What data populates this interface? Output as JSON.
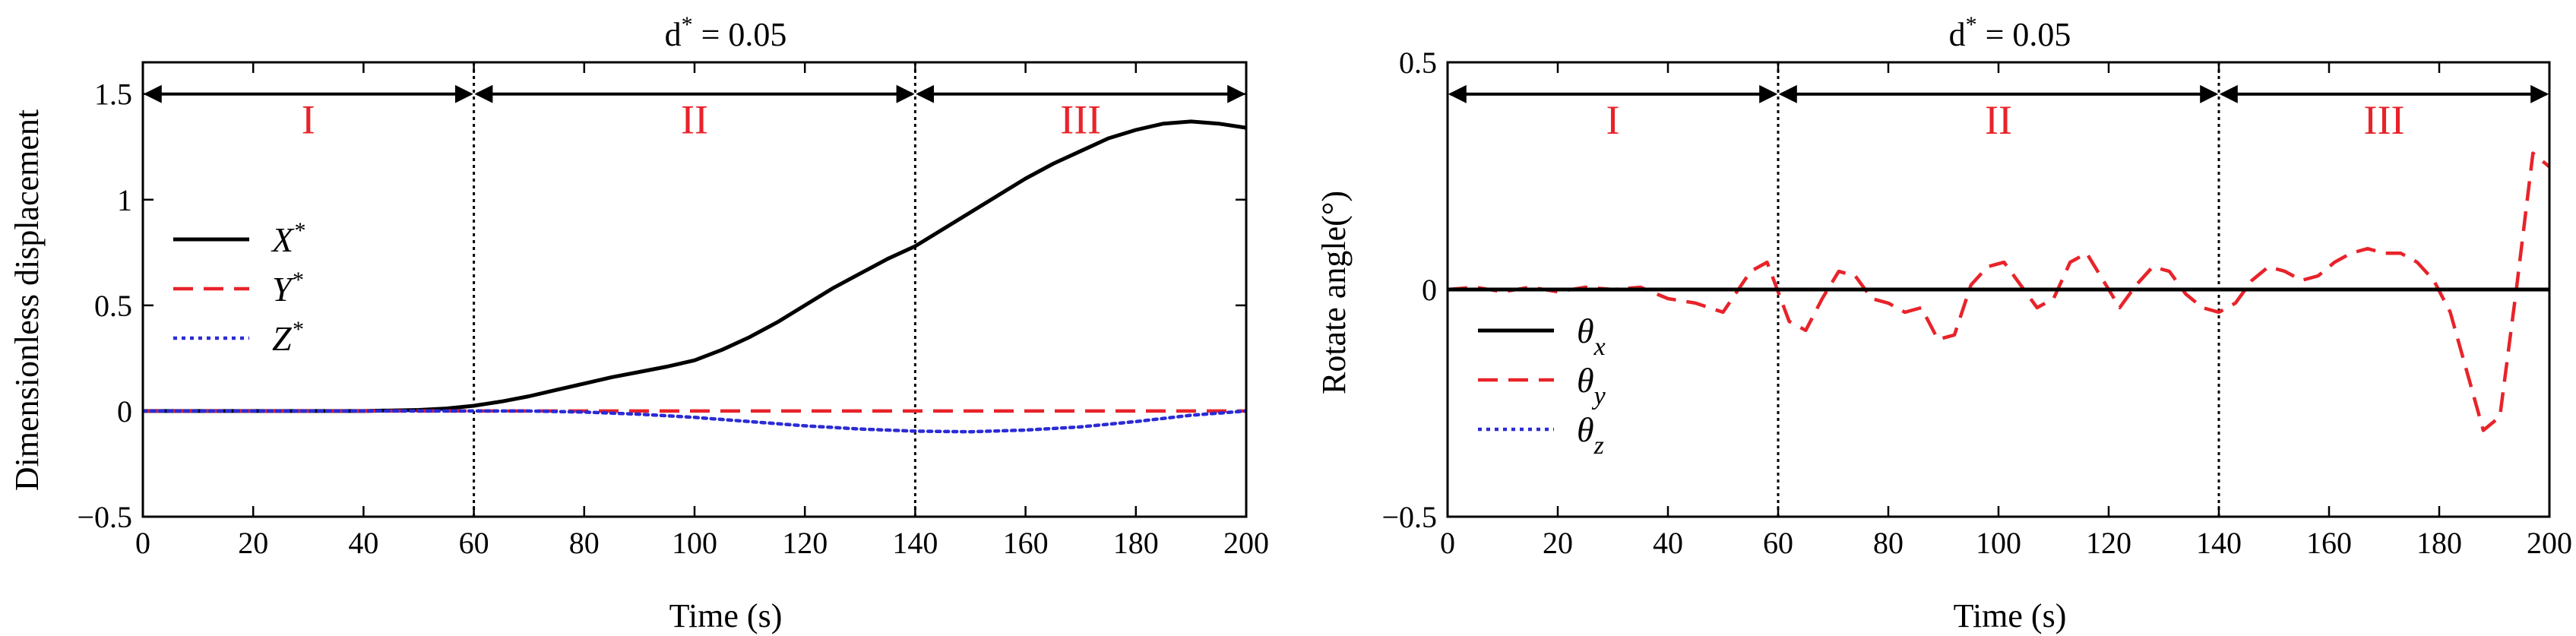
{
  "chart_data": [
    {
      "type": "line",
      "title_base": "d",
      "title_sup": "*",
      "title_rest": " = 0.05",
      "xlabel": "Time (s)",
      "ylabel": "Dimensionless displacement",
      "xlim": [
        0,
        200
      ],
      "ylim": [
        -0.5,
        1.65
      ],
      "xticks": [
        0,
        20,
        40,
        60,
        80,
        100,
        120,
        140,
        160,
        180,
        200
      ],
      "xtick_labels": [
        "0",
        "20",
        "40",
        "60",
        "80",
        "100",
        "120",
        "140",
        "160",
        "180",
        "200"
      ],
      "yticks": [
        -0.5,
        0,
        0.5,
        1,
        1.5
      ],
      "ytick_labels": [
        "−0.5",
        "0",
        "0.5",
        "1",
        "1.5"
      ],
      "phase_boundaries": [
        60,
        140
      ],
      "arrow_y": 1.5,
      "regions": [
        {
          "label": "I",
          "x": 30
        },
        {
          "label": "II",
          "x": 100
        },
        {
          "label": "III",
          "x": 170
        }
      ],
      "legend_position": "left-middle",
      "series": [
        {
          "name": "X*",
          "legend_main": "X",
          "legend_sub": "",
          "legend_sup": "*",
          "color": "#000000",
          "dash": "solid",
          "x": [
            0,
            10,
            20,
            30,
            40,
            50,
            55,
            60,
            65,
            70,
            75,
            80,
            85,
            90,
            95,
            100,
            105,
            110,
            115,
            120,
            125,
            130,
            135,
            140,
            145,
            150,
            155,
            160,
            165,
            170,
            175,
            180,
            185,
            190,
            195,
            200
          ],
          "y": [
            0,
            0,
            0,
            0,
            0,
            0.005,
            0.012,
            0.025,
            0.045,
            0.07,
            0.1,
            0.13,
            0.16,
            0.185,
            0.21,
            0.24,
            0.29,
            0.35,
            0.42,
            0.5,
            0.58,
            0.65,
            0.72,
            0.78,
            0.86,
            0.94,
            1.02,
            1.1,
            1.17,
            1.23,
            1.29,
            1.33,
            1.36,
            1.37,
            1.36,
            1.34
          ]
        },
        {
          "name": "Y*",
          "legend_main": "Y",
          "legend_sub": "",
          "legend_sup": "*",
          "color": "#e8232a",
          "dash": "dashed",
          "x": [
            0,
            20,
            40,
            60,
            80,
            100,
            120,
            140,
            160,
            180,
            200
          ],
          "y": [
            0,
            0,
            0,
            0,
            0,
            0,
            0,
            0,
            0,
            0,
            0
          ]
        },
        {
          "name": "Z*",
          "legend_main": "Z",
          "legend_sub": "",
          "legend_sup": "*",
          "color": "#2b2bd6",
          "dash": "dotted",
          "x": [
            0,
            20,
            40,
            60,
            70,
            80,
            90,
            100,
            110,
            120,
            130,
            140,
            150,
            160,
            170,
            180,
            190,
            200
          ],
          "y": [
            0,
            0,
            0,
            0,
            0,
            -0.005,
            -0.015,
            -0.03,
            -0.05,
            -0.07,
            -0.085,
            -0.095,
            -0.098,
            -0.09,
            -0.075,
            -0.05,
            -0.02,
            0
          ]
        }
      ]
    },
    {
      "type": "line",
      "title_base": "d",
      "title_sup": "*",
      "title_rest": " = 0.05",
      "xlabel": "Time (s)",
      "ylabel": "Rotate angle(°)",
      "xlim": [
        0,
        200
      ],
      "ylim": [
        -0.5,
        0.5
      ],
      "xticks": [
        0,
        20,
        40,
        60,
        80,
        100,
        120,
        140,
        160,
        180,
        200
      ],
      "xtick_labels": [
        "0",
        "20",
        "40",
        "60",
        "80",
        "100",
        "120",
        "140",
        "160",
        "180",
        "200"
      ],
      "yticks": [
        -0.5,
        0,
        0.5
      ],
      "ytick_labels": [
        "−0.5",
        "0",
        "0.5"
      ],
      "phase_boundaries": [
        60,
        140
      ],
      "arrow_y": 0.43,
      "regions": [
        {
          "label": "I",
          "x": 30
        },
        {
          "label": "II",
          "x": 100
        },
        {
          "label": "III",
          "x": 170
        }
      ],
      "legend_position": "left-lower",
      "series": [
        {
          "name": "θx",
          "legend_main": "θ",
          "legend_sub": "x",
          "legend_sup": "",
          "color": "#000000",
          "dash": "solid",
          "x": [
            0,
            20,
            40,
            60,
            80,
            100,
            120,
            140,
            160,
            180,
            200
          ],
          "y": [
            0,
            0,
            0,
            0,
            0,
            0,
            0,
            0,
            0,
            0,
            0
          ]
        },
        {
          "name": "θy",
          "legend_main": "θ",
          "legend_sub": "y",
          "legend_sup": "",
          "color": "#e8232a",
          "dash": "dashed",
          "x": [
            0,
            5,
            10,
            15,
            20,
            25,
            30,
            35,
            40,
            45,
            50,
            55,
            58,
            62,
            65,
            68,
            71,
            74,
            77,
            80,
            83,
            86,
            89,
            92,
            95,
            98,
            101,
            104,
            107,
            110,
            113,
            116,
            119,
            122,
            125,
            128,
            131,
            134,
            137,
            140,
            143,
            146,
            149,
            152,
            155,
            158,
            161,
            164,
            167,
            170,
            173,
            176,
            179,
            182,
            185,
            188,
            191,
            194,
            197,
            200
          ],
          "y": [
            0,
            0.005,
            -0.005,
            0.005,
            -0.005,
            0.005,
            0,
            0.005,
            -0.02,
            -0.03,
            -0.05,
            0.04,
            0.06,
            -0.07,
            -0.09,
            -0.02,
            0.04,
            0.03,
            -0.02,
            -0.03,
            -0.05,
            -0.04,
            -0.11,
            -0.1,
            0.01,
            0.05,
            0.06,
            0.01,
            -0.04,
            -0.02,
            0.06,
            0.08,
            0.02,
            -0.04,
            0.01,
            0.05,
            0.04,
            -0.01,
            -0.04,
            -0.05,
            -0.03,
            0.02,
            0.05,
            0.04,
            0.02,
            0.03,
            0.06,
            0.08,
            0.09,
            0.08,
            0.08,
            0.06,
            0.02,
            -0.05,
            -0.18,
            -0.31,
            -0.28,
            0.0,
            0.3,
            0.27
          ]
        },
        {
          "name": "θz",
          "legend_main": "θ",
          "legend_sub": "z",
          "legend_sup": "",
          "color": "#2b2bd6",
          "dash": "dotted",
          "x": [
            0,
            20,
            40,
            60,
            80,
            100,
            120,
            140,
            160,
            180,
            200
          ],
          "y": [
            0,
            0,
            0,
            0,
            0,
            0,
            0,
            0,
            0,
            0,
            0
          ]
        }
      ]
    }
  ]
}
